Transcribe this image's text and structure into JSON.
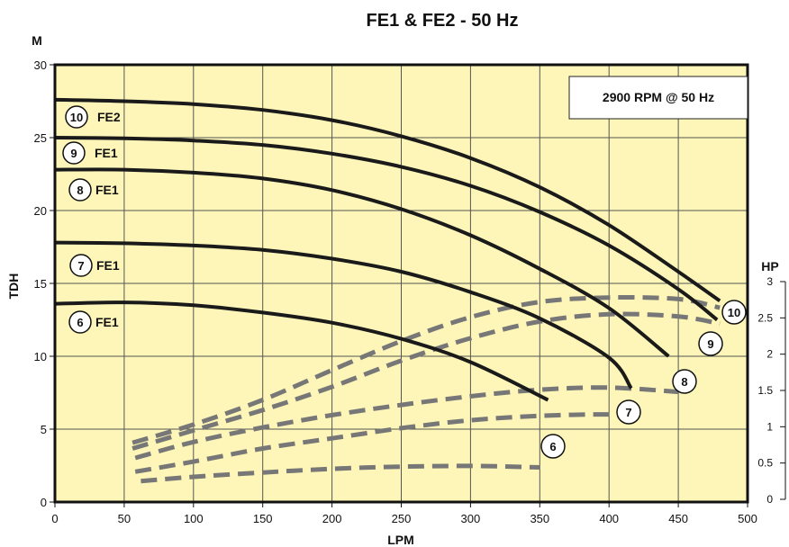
{
  "chart_data": {
    "type": "line",
    "title": "FE1 & FE2 - 50 Hz",
    "xlabel": "LPM",
    "ylabel": "TDH",
    "y_unit": "M",
    "y2_unit": "HP",
    "xlim": [
      0,
      500
    ],
    "ylim": [
      0,
      30
    ],
    "y2lim": [
      0,
      3
    ],
    "xticks": [
      0,
      50,
      100,
      150,
      200,
      250,
      300,
      350,
      400,
      450,
      500
    ],
    "yticks": [
      0,
      5,
      10,
      15,
      20,
      25,
      30
    ],
    "y2ticks": [
      "0",
      "0.5",
      "1",
      "1.5",
      "2",
      "2.5",
      "3"
    ],
    "grid": true,
    "note": "2900 RPM @ 50 Hz",
    "colors": {
      "background": "#fdf6b8",
      "head_curve": "#1a1a1a",
      "power_curve": "#777777"
    },
    "head_curves": [
      {
        "id": "10",
        "model": "FE2",
        "x": [
          0,
          50,
          100,
          150,
          200,
          250,
          300,
          350,
          400,
          450,
          480
        ],
        "y": [
          27.6,
          27.5,
          27.3,
          26.9,
          26.2,
          25.1,
          23.6,
          21.6,
          19.0,
          15.8,
          13.8
        ]
      },
      {
        "id": "9",
        "model": "FE1",
        "x": [
          0,
          50,
          100,
          150,
          200,
          250,
          300,
          350,
          400,
          450,
          478
        ],
        "y": [
          25.0,
          24.95,
          24.8,
          24.5,
          23.9,
          23.0,
          21.7,
          19.9,
          17.6,
          14.6,
          12.5
        ]
      },
      {
        "id": "8",
        "model": "FE1",
        "x": [
          0,
          50,
          100,
          150,
          200,
          250,
          300,
          350,
          400,
          443
        ],
        "y": [
          22.8,
          22.8,
          22.6,
          22.2,
          21.4,
          20.1,
          18.3,
          16.0,
          13.3,
          10.0
        ]
      },
      {
        "id": "7",
        "model": "FE1",
        "x": [
          0,
          50,
          100,
          150,
          200,
          250,
          300,
          350,
          400,
          416
        ],
        "y": [
          17.8,
          17.75,
          17.6,
          17.3,
          16.7,
          15.8,
          14.4,
          12.6,
          9.9,
          7.8
        ]
      },
      {
        "id": "6",
        "model": "FE1",
        "x": [
          0,
          50,
          100,
          150,
          200,
          250,
          300,
          356
        ],
        "y": [
          13.6,
          13.7,
          13.5,
          13.0,
          12.3,
          11.2,
          9.6,
          7.0
        ]
      }
    ],
    "power_curves": [
      {
        "id": "10",
        "x": [
          56,
          100,
          150,
          200,
          250,
          300,
          350,
          400,
          450,
          480
        ],
        "hp": [
          0.78,
          1.03,
          1.37,
          1.78,
          2.18,
          2.51,
          2.72,
          2.78,
          2.76,
          2.64
        ]
      },
      {
        "id": "9",
        "x": [
          56,
          100,
          150,
          200,
          250,
          300,
          350,
          400,
          450,
          480
        ],
        "hp": [
          0.7,
          0.95,
          1.23,
          1.55,
          1.91,
          2.22,
          2.45,
          2.55,
          2.52,
          2.42
        ]
      },
      {
        "id": "8",
        "x": [
          58,
          100,
          150,
          200,
          250,
          300,
          350,
          400,
          450
        ],
        "hp": [
          0.57,
          0.79,
          0.99,
          1.16,
          1.3,
          1.42,
          1.51,
          1.54,
          1.48
        ]
      },
      {
        "id": "7",
        "x": [
          58,
          100,
          150,
          200,
          250,
          300,
          350,
          400,
          415
        ],
        "hp": [
          0.38,
          0.52,
          0.7,
          0.84,
          0.98,
          1.09,
          1.15,
          1.17,
          1.13
        ]
      },
      {
        "id": "6",
        "x": [
          62,
          100,
          150,
          200,
          250,
          300,
          350
        ],
        "hp": [
          0.25,
          0.31,
          0.37,
          0.42,
          0.45,
          0.46,
          0.44
        ]
      }
    ],
    "curve_markers": [
      {
        "id": "10",
        "model": "FE2"
      },
      {
        "id": "9",
        "model": "FE1"
      },
      {
        "id": "8",
        "model": "FE1"
      },
      {
        "id": "7",
        "model": "FE1"
      },
      {
        "id": "6",
        "model": "FE1"
      }
    ],
    "power_markers": [
      "10",
      "9",
      "8",
      "7",
      "6"
    ]
  }
}
